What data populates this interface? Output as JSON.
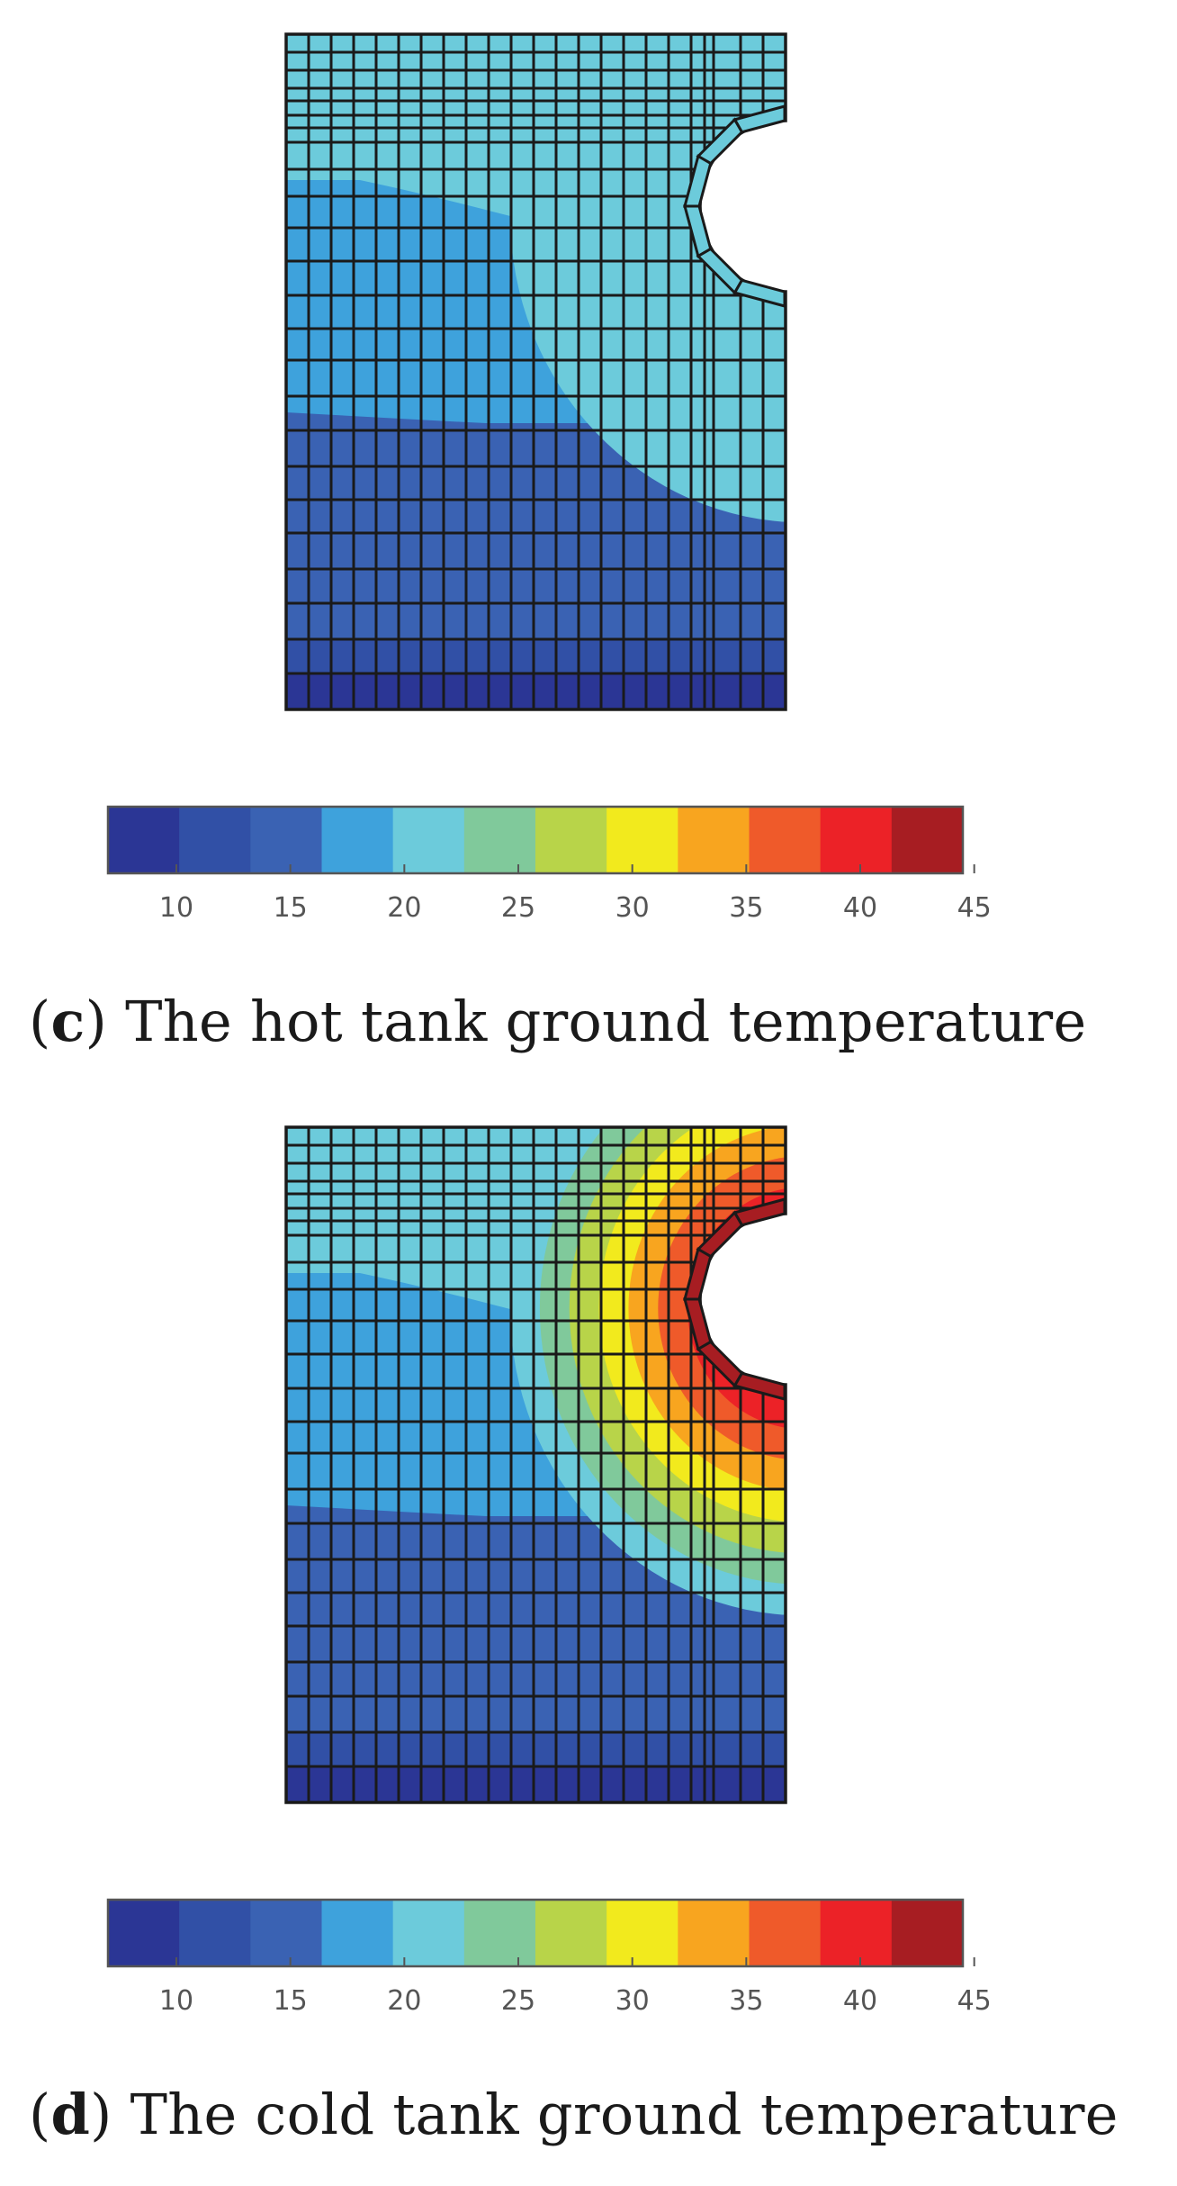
{
  "chart_data": [
    {
      "type": "heatmap",
      "caption_letter": "c",
      "caption_text": "The hot tank ground temperature",
      "colorbar": {
        "ticks": [
          "10",
          "15",
          "20",
          "25",
          "30",
          "35",
          "40",
          "45"
        ],
        "bins": [
          {
            "from": 7,
            "to": 10.1,
            "color": "#2b3695"
          },
          {
            "from": 10.1,
            "to": 13.2,
            "color": "#3150a6"
          },
          {
            "from": 13.2,
            "to": 16.3,
            "color": "#3a62b3"
          },
          {
            "from": 16.3,
            "to": 19.5,
            "color": "#3ea2dc"
          },
          {
            "from": 19.5,
            "to": 22.6,
            "color": "#6ccbdb"
          },
          {
            "from": 22.6,
            "to": 25.7,
            "color": "#80c99b"
          },
          {
            "from": 25.7,
            "to": 28.8,
            "color": "#b8d449"
          },
          {
            "from": 28.8,
            "to": 32.0,
            "color": "#f2ea1d"
          },
          {
            "from": 32.0,
            "to": 35.1,
            "color": "#f8a51f"
          },
          {
            "from": 35.1,
            "to": 38.2,
            "color": "#ef5a2a"
          },
          {
            "from": 38.2,
            "to": 41.3,
            "color": "#ec2227"
          },
          {
            "from": 41.3,
            "to": 44.5,
            "color": "#a71d22"
          }
        ]
      },
      "field": {
        "top_band": 20.5,
        "upper_blue": 18.0,
        "mid_blue": 14.5,
        "lower_blue": 11.5,
        "bottom_band": 8.5,
        "cavity_wall": 21.0
      }
    },
    {
      "type": "heatmap",
      "caption_letter": "d",
      "caption_text": "The cold tank ground temperature",
      "colorbar": {
        "ticks": [
          "10",
          "15",
          "20",
          "25",
          "30",
          "35",
          "40",
          "45"
        ],
        "bins": [
          {
            "from": 7,
            "to": 10.1,
            "color": "#2b3695"
          },
          {
            "from": 10.1,
            "to": 13.2,
            "color": "#3150a6"
          },
          {
            "from": 13.2,
            "to": 16.3,
            "color": "#3a62b3"
          },
          {
            "from": 16.3,
            "to": 19.5,
            "color": "#3ea2dc"
          },
          {
            "from": 19.5,
            "to": 22.6,
            "color": "#6ccbdb"
          },
          {
            "from": 22.6,
            "to": 25.7,
            "color": "#80c99b"
          },
          {
            "from": 25.7,
            "to": 28.8,
            "color": "#b8d449"
          },
          {
            "from": 28.8,
            "to": 32.0,
            "color": "#f2ea1d"
          },
          {
            "from": 32.0,
            "to": 35.1,
            "color": "#f8a51f"
          },
          {
            "from": 35.1,
            "to": 38.2,
            "color": "#ef5a2a"
          },
          {
            "from": 38.2,
            "to": 41.3,
            "color": "#ec2227"
          },
          {
            "from": 41.3,
            "to": 44.5,
            "color": "#a71d22"
          }
        ]
      },
      "field": {
        "top_band": 20.5,
        "upper_blue": 18.0,
        "mid_blue": 14.5,
        "lower_blue": 11.5,
        "bottom_band": 8.5,
        "cavity_wall": 44.0
      }
    }
  ]
}
